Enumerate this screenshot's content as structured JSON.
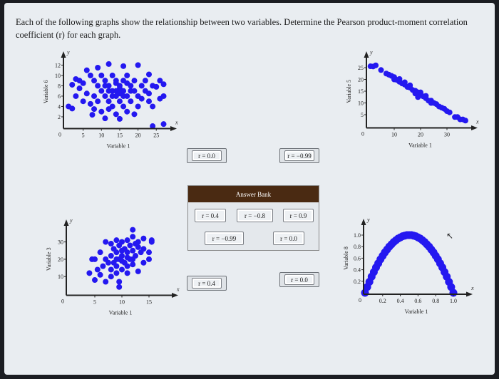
{
  "question": "Each of the following graphs show the relationship between two variables. Determine the Pearson product-moment correlation coefficient (r) for each graph.",
  "answer_bank": {
    "title": "Answer Bank",
    "items": [
      "r = 0.4",
      "r = −0.8",
      "r = 0.9",
      "r = −0.99",
      "r = 0.0"
    ]
  },
  "placed_answers": {
    "graph1": "r = 0.0",
    "graph2": "r = −0.99",
    "graph3": "r = 0.4",
    "graph4": "r = 0.0"
  },
  "colors": {
    "points": "#2418f0",
    "bank_header": "#4a2a12"
  },
  "chart_data": [
    {
      "type": "scatter",
      "xlabel": "Variable 1",
      "ylabel": "Variable 6",
      "x_axis_letter": "x",
      "y_axis_letter": "y",
      "xticks": [
        5,
        10,
        15,
        20,
        25
      ],
      "yticks": [
        2,
        4,
        6,
        8,
        10,
        12
      ],
      "origin_label": "0",
      "points": [
        [
          1,
          4
        ],
        [
          2,
          3.6
        ],
        [
          2,
          8.2
        ],
        [
          3,
          9.3
        ],
        [
          3,
          6
        ],
        [
          4,
          7.5
        ],
        [
          4,
          9
        ],
        [
          5,
          5
        ],
        [
          5,
          8.5
        ],
        [
          6,
          11
        ],
        [
          6,
          6.5
        ],
        [
          7,
          10
        ],
        [
          7,
          4.5
        ],
        [
          7.5,
          2.4
        ],
        [
          8,
          9
        ],
        [
          8,
          6
        ],
        [
          8,
          3.5
        ],
        [
          9,
          11.5
        ],
        [
          9,
          8
        ],
        [
          9,
          5
        ],
        [
          10,
          7
        ],
        [
          10,
          10
        ],
        [
          10,
          3
        ],
        [
          11,
          9
        ],
        [
          11,
          6
        ],
        [
          11,
          1.7
        ],
        [
          12,
          12.2
        ],
        [
          12,
          8
        ],
        [
          12,
          5
        ],
        [
          12,
          3.5
        ],
        [
          13,
          10
        ],
        [
          13,
          7
        ],
        [
          13,
          4
        ],
        [
          14,
          9
        ],
        [
          14,
          6
        ],
        [
          14,
          2.5
        ],
        [
          15,
          8
        ],
        [
          15,
          5
        ],
        [
          15,
          1.6
        ],
        [
          16,
          11.8
        ],
        [
          16,
          9
        ],
        [
          16,
          7
        ],
        [
          16,
          4
        ],
        [
          17,
          10
        ],
        [
          17,
          6
        ],
        [
          17,
          3
        ],
        [
          18,
          8
        ],
        [
          18,
          5
        ],
        [
          19,
          9
        ],
        [
          19,
          7
        ],
        [
          19,
          2.5
        ],
        [
          20,
          12
        ],
        [
          20,
          6
        ],
        [
          20,
          4
        ],
        [
          21,
          8
        ],
        [
          21,
          5.5
        ],
        [
          22,
          7
        ],
        [
          22,
          9
        ],
        [
          23,
          5
        ],
        [
          23,
          10.2
        ],
        [
          23,
          6.5
        ],
        [
          24,
          8
        ],
        [
          24,
          0.2
        ],
        [
          24,
          4
        ],
        [
          25,
          7.8
        ],
        [
          26,
          9
        ],
        [
          26,
          5.5
        ],
        [
          27,
          8.3
        ],
        [
          27,
          6
        ],
        [
          27,
          0.6
        ],
        [
          14,
          7
        ],
        [
          15,
          7.5
        ],
        [
          13,
          6
        ],
        [
          16,
          6
        ],
        [
          12,
          7
        ],
        [
          18,
          7
        ],
        [
          11,
          8
        ],
        [
          17,
          8.5
        ],
        [
          15,
          6.5
        ],
        [
          14,
          8.5
        ]
      ]
    },
    {
      "type": "scatter",
      "xlabel": "Variable 1",
      "ylabel": "Variable 5",
      "x_axis_letter": "x",
      "y_axis_letter": "y",
      "xticks": [
        10,
        20,
        30
      ],
      "yticks": [
        5,
        10,
        15,
        20,
        25
      ],
      "origin_label": "0",
      "points": [
        [
          1,
          25.6
        ],
        [
          2,
          25.5
        ],
        [
          3,
          26
        ],
        [
          5,
          24
        ],
        [
          7,
          22.5
        ],
        [
          8,
          22
        ],
        [
          9,
          21.5
        ],
        [
          10,
          20
        ],
        [
          10,
          21
        ],
        [
          11,
          19.8
        ],
        [
          12,
          19
        ],
        [
          12,
          20.2
        ],
        [
          13,
          18.3
        ],
        [
          14,
          17.8
        ],
        [
          14,
          18.8
        ],
        [
          15,
          16.8
        ],
        [
          16,
          16.5
        ],
        [
          16,
          17.5
        ],
        [
          17,
          15.5
        ],
        [
          18,
          15.2
        ],
        [
          18,
          14
        ],
        [
          19,
          14.5
        ],
        [
          19,
          12.5
        ],
        [
          20,
          13.5
        ],
        [
          20,
          14.5
        ],
        [
          21,
          12.8
        ],
        [
          22,
          12
        ],
        [
          22,
          13
        ],
        [
          23,
          11
        ],
        [
          24,
          11
        ],
        [
          24,
          10
        ],
        [
          25,
          10
        ],
        [
          26,
          9.5
        ],
        [
          27,
          8.5
        ],
        [
          28,
          8
        ],
        [
          29,
          7.5
        ],
        [
          30,
          6.5
        ],
        [
          31,
          6
        ],
        [
          33,
          4
        ],
        [
          34,
          4
        ],
        [
          35,
          3
        ],
        [
          36,
          3
        ],
        [
          37,
          2.5
        ]
      ]
    },
    {
      "type": "scatter",
      "xlabel": "Variable 1",
      "ylabel": "Variable 3",
      "x_axis_letter": "x",
      "y_axis_letter": "y",
      "xticks": [
        5,
        10,
        15
      ],
      "yticks": [
        10,
        20,
        30
      ],
      "origin_label": "0",
      "points": [
        [
          4,
          12
        ],
        [
          4.5,
          20
        ],
        [
          5,
          20
        ],
        [
          5,
          8
        ],
        [
          5.5,
          14
        ],
        [
          6,
          24
        ],
        [
          6,
          11
        ],
        [
          6.5,
          16
        ],
        [
          7,
          30
        ],
        [
          7,
          20
        ],
        [
          7,
          7
        ],
        [
          7.5,
          18
        ],
        [
          8,
          29
        ],
        [
          8,
          22
        ],
        [
          8,
          14
        ],
        [
          8,
          10
        ],
        [
          8.5,
          26
        ],
        [
          8.5,
          18
        ],
        [
          9,
          31
        ],
        [
          9,
          24
        ],
        [
          9,
          16
        ],
        [
          9,
          12
        ],
        [
          9.5,
          7
        ],
        [
          9.5,
          4
        ],
        [
          9.5,
          28
        ],
        [
          9.5,
          20
        ],
        [
          10,
          30
        ],
        [
          10,
          22
        ],
        [
          10,
          14
        ],
        [
          10.5,
          26
        ],
        [
          10.5,
          18
        ],
        [
          11,
          31
        ],
        [
          11,
          24
        ],
        [
          11,
          16
        ],
        [
          11,
          12
        ],
        [
          11.5,
          28
        ],
        [
          11.5,
          20
        ],
        [
          12,
          37
        ],
        [
          12,
          33
        ],
        [
          12,
          25
        ],
        [
          12,
          17
        ],
        [
          12.5,
          29
        ],
        [
          12.5,
          22
        ],
        [
          13,
          27
        ],
        [
          13,
          13
        ],
        [
          13,
          30
        ],
        [
          13.5,
          24
        ],
        [
          14,
          32
        ],
        [
          14,
          26
        ],
        [
          14,
          18
        ],
        [
          15,
          24
        ],
        [
          15,
          20
        ],
        [
          15.5,
          30
        ],
        [
          15.5,
          31
        ],
        [
          10,
          19
        ],
        [
          9,
          20
        ],
        [
          11,
          21
        ],
        [
          10,
          25
        ],
        [
          12,
          20
        ]
      ]
    },
    {
      "type": "scatter",
      "xlabel": "Variable 1",
      "ylabel": "Variable 8",
      "x_axis_letter": "x",
      "y_axis_letter": "y",
      "xticks": [
        0.2,
        0.4,
        0.6,
        0.8,
        1.0
      ],
      "yticks": [
        0.2,
        0.4,
        0.6,
        0.8,
        1.0
      ],
      "origin_label": "0",
      "points": [
        [
          0,
          0
        ],
        [
          0.025,
          0.1
        ],
        [
          0.05,
          0.19
        ],
        [
          0.075,
          0.28
        ],
        [
          0.1,
          0.36
        ],
        [
          0.125,
          0.44
        ],
        [
          0.15,
          0.51
        ],
        [
          0.175,
          0.58
        ],
        [
          0.2,
          0.64
        ],
        [
          0.225,
          0.7
        ],
        [
          0.25,
          0.75
        ],
        [
          0.275,
          0.8
        ],
        [
          0.3,
          0.84
        ],
        [
          0.325,
          0.88
        ],
        [
          0.35,
          0.91
        ],
        [
          0.375,
          0.94
        ],
        [
          0.4,
          0.96
        ],
        [
          0.425,
          0.98
        ],
        [
          0.45,
          0.99
        ],
        [
          0.475,
          1.0
        ],
        [
          0.5,
          1.0
        ],
        [
          0.525,
          1.0
        ],
        [
          0.55,
          0.99
        ],
        [
          0.575,
          0.98
        ],
        [
          0.6,
          0.96
        ],
        [
          0.625,
          0.94
        ],
        [
          0.65,
          0.91
        ],
        [
          0.675,
          0.88
        ],
        [
          0.7,
          0.84
        ],
        [
          0.725,
          0.8
        ],
        [
          0.75,
          0.75
        ],
        [
          0.775,
          0.7
        ],
        [
          0.8,
          0.64
        ],
        [
          0.825,
          0.58
        ],
        [
          0.85,
          0.51
        ],
        [
          0.875,
          0.44
        ],
        [
          0.9,
          0.36
        ],
        [
          0.925,
          0.28
        ],
        [
          0.95,
          0.19
        ],
        [
          0.975,
          0.1
        ],
        [
          1.0,
          0.0
        ]
      ]
    }
  ]
}
